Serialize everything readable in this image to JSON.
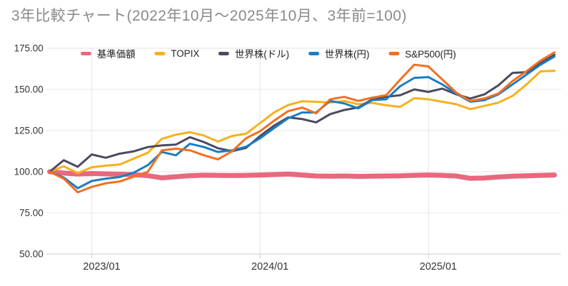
{
  "title": "3年比較チャート(2022年10月〜2025年10月、3年前=100)",
  "colors": {
    "grid": "#e4e4e4",
    "axis": "#cccccc",
    "tick_label": "#333333",
    "title_text": "#8a8a8a",
    "legend_text": "#212121",
    "background": "#ffffff"
  },
  "chart_data": {
    "type": "line",
    "title": "3年比較チャート(2022年10月〜2025年10月、3年前=100)",
    "grid": true,
    "legend_position": "top",
    "ylim": [
      50,
      175
    ],
    "y_ticks": [
      175,
      150,
      125,
      100,
      75,
      50
    ],
    "y_tick_labels": [
      "175.00",
      "150.00",
      "125.00",
      "100.00",
      "75.00",
      "50.00"
    ],
    "x_tick_labels": [
      "2023/01",
      "2024/01",
      "2025/01"
    ],
    "categories": [
      "2022/10",
      "2022/11",
      "2022/12",
      "2023/01",
      "2023/02",
      "2023/03",
      "2023/04",
      "2023/05",
      "2023/06",
      "2023/07",
      "2023/08",
      "2023/09",
      "2023/10",
      "2023/11",
      "2023/12",
      "2024/01",
      "2024/02",
      "2024/03",
      "2024/04",
      "2024/05",
      "2024/06",
      "2024/07",
      "2024/08",
      "2024/09",
      "2024/10",
      "2024/11",
      "2024/12",
      "2025/01",
      "2025/02",
      "2025/03",
      "2025/04",
      "2025/05",
      "2025/06",
      "2025/07",
      "2025/08",
      "2025/09",
      "2025/10"
    ],
    "series": [
      {
        "name": "基準価額",
        "key": "fund-base-price",
        "color": "#e8687e",
        "line_width": 7,
        "values": [
          100,
          99.2,
          98.6,
          98.9,
          98.7,
          98.5,
          98.2,
          97.6,
          96.3,
          97.0,
          97.6,
          97.9,
          97.8,
          97.7,
          97.8,
          98.0,
          98.3,
          98.6,
          98.0,
          97.4,
          97.3,
          97.4,
          97.2,
          97.3,
          97.4,
          97.5,
          97.8,
          98.0,
          97.8,
          97.4,
          96.0,
          96.2,
          96.8,
          97.3,
          97.5,
          97.8,
          98.0
        ]
      },
      {
        "name": "TOPIX",
        "key": "topix",
        "color": "#f6b11c",
        "line_width": 3,
        "values": [
          100,
          103.3,
          99.2,
          102.7,
          103.7,
          104.4,
          108.0,
          111.5,
          120.0,
          122.5,
          124.0,
          122.0,
          118.3,
          121.7,
          123.1,
          129.5,
          136.0,
          140.5,
          142.8,
          142.5,
          142.0,
          143.0,
          141.0,
          141.8,
          140.4,
          139.4,
          144.7,
          144.0,
          142.5,
          141.0,
          138.0,
          140.0,
          142.0,
          146.0,
          153.0,
          161.0,
          161.3
        ]
      },
      {
        "name": "世界株(ドル)",
        "key": "world-stocks-usd",
        "color": "#4b4a60",
        "line_width": 3,
        "values": [
          100,
          107.0,
          103.0,
          110.5,
          108.5,
          111.0,
          112.4,
          115.0,
          116.0,
          116.5,
          121.0,
          118.0,
          114.3,
          112.5,
          114.5,
          121.7,
          128.0,
          133.0,
          132.0,
          130.0,
          135.0,
          137.5,
          139.0,
          144.0,
          145.5,
          146.5,
          150.0,
          148.5,
          150.5,
          147.0,
          144.5,
          147.0,
          152.5,
          160.0,
          160.5,
          166.0,
          171.0
        ]
      },
      {
        "name": "世界株(円)",
        "key": "world-stocks-jpy",
        "color": "#1a7dc2",
        "line_width": 3,
        "values": [
          100,
          96.5,
          90.0,
          94.4,
          95.8,
          96.8,
          99.5,
          104.0,
          112.0,
          110.0,
          117.0,
          115.0,
          112.0,
          113.0,
          115.2,
          120.3,
          126.5,
          132.5,
          136.0,
          136.0,
          143.0,
          141.5,
          138.5,
          143.5,
          144.0,
          152.0,
          157.0,
          157.5,
          153.0,
          147.5,
          142.5,
          143.5,
          147.0,
          153.0,
          159.0,
          165.0,
          170.0
        ]
      },
      {
        "name": "S&P500(円)",
        "key": "sp500-jpy",
        "color": "#f26f20",
        "line_width": 3,
        "values": [
          100,
          95.8,
          87.5,
          90.8,
          93.0,
          94.1,
          97.0,
          100.0,
          113.0,
          114.0,
          113.0,
          110.0,
          107.5,
          112.4,
          120.3,
          124.6,
          131.0,
          136.8,
          139.0,
          135.5,
          144.0,
          145.5,
          143.0,
          145.0,
          146.5,
          156.0,
          165.0,
          164.0,
          156.0,
          148.0,
          143.0,
          144.5,
          147.5,
          155.0,
          161.0,
          167.5,
          172.5
        ]
      }
    ]
  }
}
